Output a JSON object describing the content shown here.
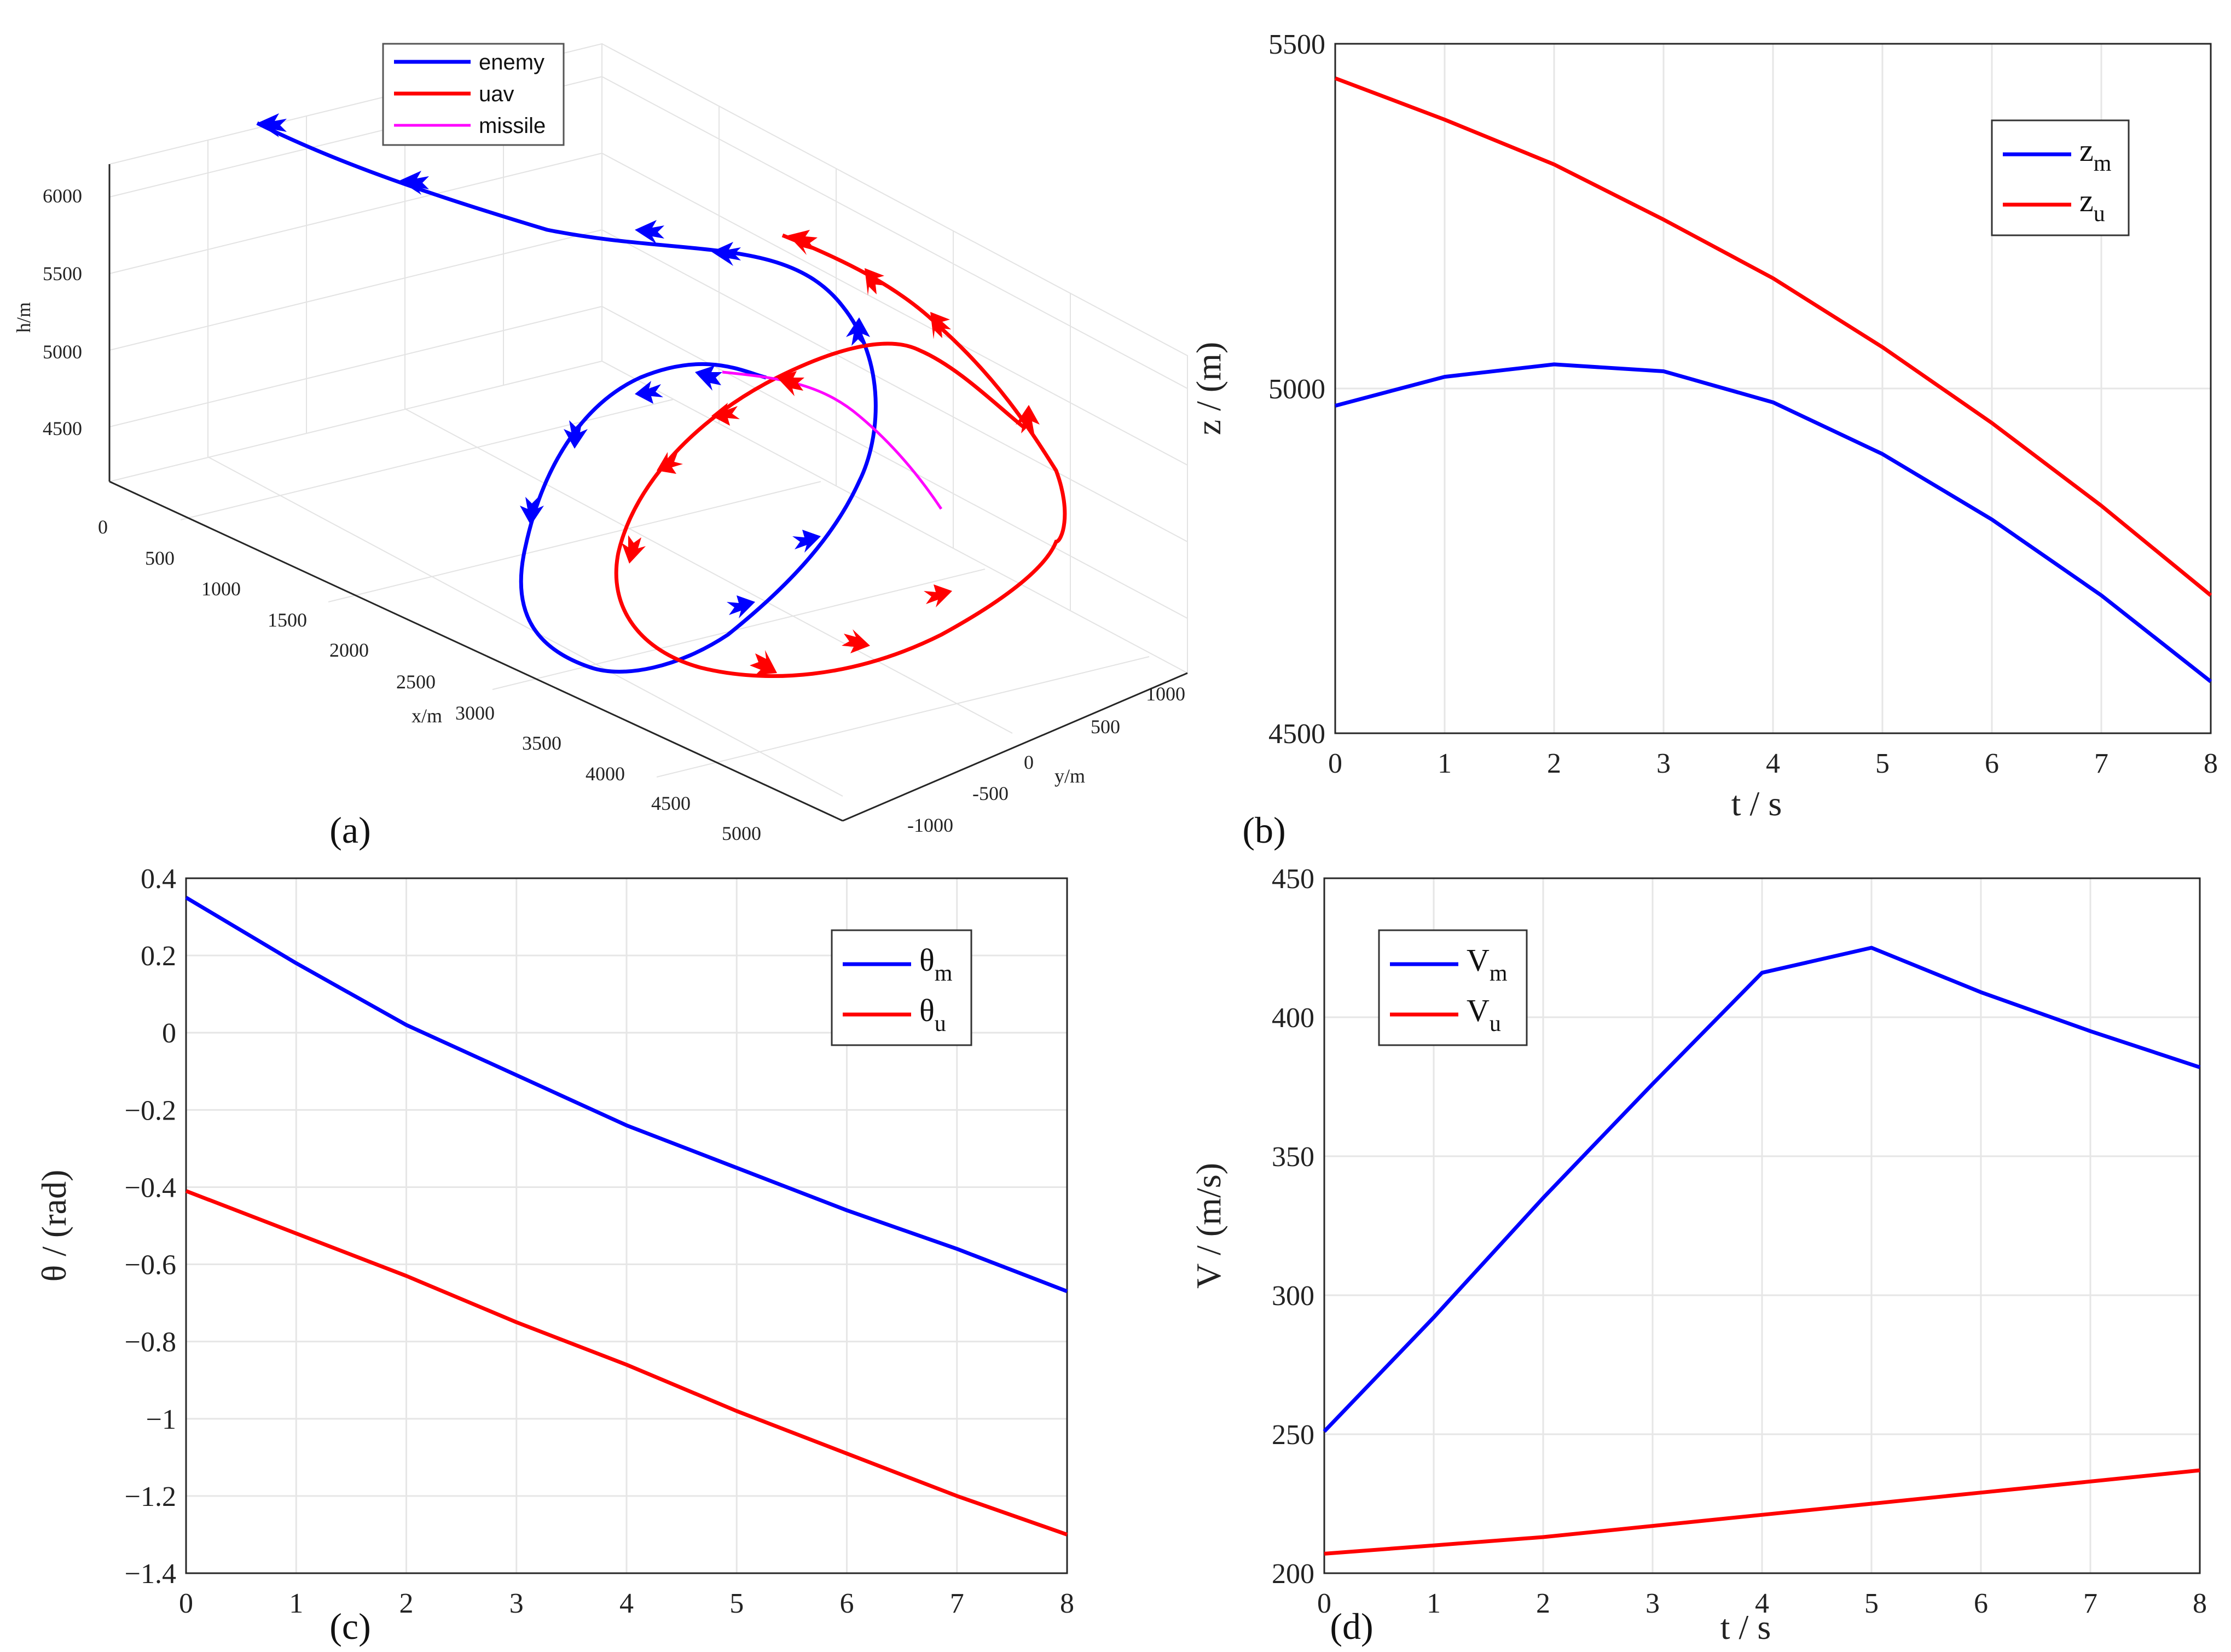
{
  "chart_data": [
    {
      "panel": "(a)",
      "type": "line3d",
      "xlabel": "x/m",
      "ylabel": "y/m",
      "zlabel": "h/m",
      "x_ticks": [
        "0",
        "500",
        "1000",
        "1500",
        "2000",
        "2500",
        "3000",
        "3500",
        "4000",
        "4500",
        "5000"
      ],
      "y_ticks": [
        "-1000",
        "-500",
        "0",
        "500",
        "1000"
      ],
      "z_ticks": [
        "4500",
        "5000",
        "5500",
        "6000"
      ],
      "legend": [
        {
          "label": "enemy",
          "color": "#0000ff"
        },
        {
          "label": "uav",
          "color": "#ff0000"
        },
        {
          "label": "missile",
          "color": "#ff00ff"
        }
      ]
    },
    {
      "panel": "(b)",
      "type": "line",
      "xlabel": "t / s",
      "ylabel": "z / (m)",
      "xlim": [
        0,
        8
      ],
      "ylim": [
        4500,
        5500
      ],
      "x_ticks": [
        "0",
        "1",
        "2",
        "3",
        "4",
        "5",
        "6",
        "7",
        "8"
      ],
      "y_ticks": [
        "4500",
        "5000",
        "5500"
      ],
      "x": [
        0,
        1,
        2,
        3,
        4,
        5,
        6,
        7,
        8
      ],
      "series": [
        {
          "name": "z",
          "sub": "m",
          "color": "#0000ff",
          "values": [
            4975,
            5017,
            5035,
            5025,
            4980,
            4905,
            4810,
            4700,
            4575
          ]
        },
        {
          "name": "z",
          "sub": "u",
          "color": "#ff0000",
          "values": [
            5450,
            5390,
            5325,
            5245,
            5160,
            5060,
            4950,
            4830,
            4700
          ]
        }
      ],
      "legend_position": "top-right"
    },
    {
      "panel": "(c)",
      "type": "line",
      "xlabel": "",
      "ylabel": "θ / (rad)",
      "xlim": [
        0,
        8
      ],
      "ylim": [
        -1.4,
        0.4
      ],
      "x_ticks": [
        "0",
        "1",
        "2",
        "3",
        "4",
        "5",
        "6",
        "7",
        "8"
      ],
      "y_ticks": [
        "−1.4",
        "−1.2",
        "−1",
        "−0.8",
        "−0.6",
        "−0.4",
        "−0.2",
        "0",
        "0.2",
        "0.4"
      ],
      "x": [
        0,
        1,
        2,
        3,
        4,
        5,
        6,
        7,
        8
      ],
      "series": [
        {
          "name": "θ",
          "sub": "m",
          "color": "#0000ff",
          "values": [
            0.35,
            0.18,
            0.02,
            -0.11,
            -0.24,
            -0.35,
            -0.46,
            -0.56,
            -0.67
          ]
        },
        {
          "name": "θ",
          "sub": "u",
          "color": "#ff0000",
          "values": [
            -0.41,
            -0.52,
            -0.63,
            -0.75,
            -0.86,
            -0.98,
            -1.09,
            -1.2,
            -1.3
          ]
        }
      ],
      "legend_position": "top-right"
    },
    {
      "panel": "(d)",
      "type": "line",
      "xlabel": "t / s",
      "ylabel": "V / (m/s)",
      "xlim": [
        0,
        8
      ],
      "ylim": [
        200,
        450
      ],
      "x_ticks": [
        "0",
        "1",
        "2",
        "3",
        "4",
        "5",
        "6",
        "7",
        "8"
      ],
      "y_ticks": [
        "200",
        "250",
        "300",
        "350",
        "400",
        "450"
      ],
      "x": [
        0,
        1,
        2,
        3,
        4,
        5,
        6,
        7,
        8
      ],
      "series": [
        {
          "name": "V",
          "sub": "m",
          "color": "#0000ff",
          "values": [
            251,
            292,
            335,
            376,
            416,
            425,
            409,
            395,
            382
          ]
        },
        {
          "name": "V",
          "sub": "u",
          "color": "#ff0000",
          "values": [
            207,
            210,
            213,
            217,
            221,
            225,
            229,
            233,
            237
          ]
        }
      ],
      "legend_position": "top-left"
    }
  ]
}
